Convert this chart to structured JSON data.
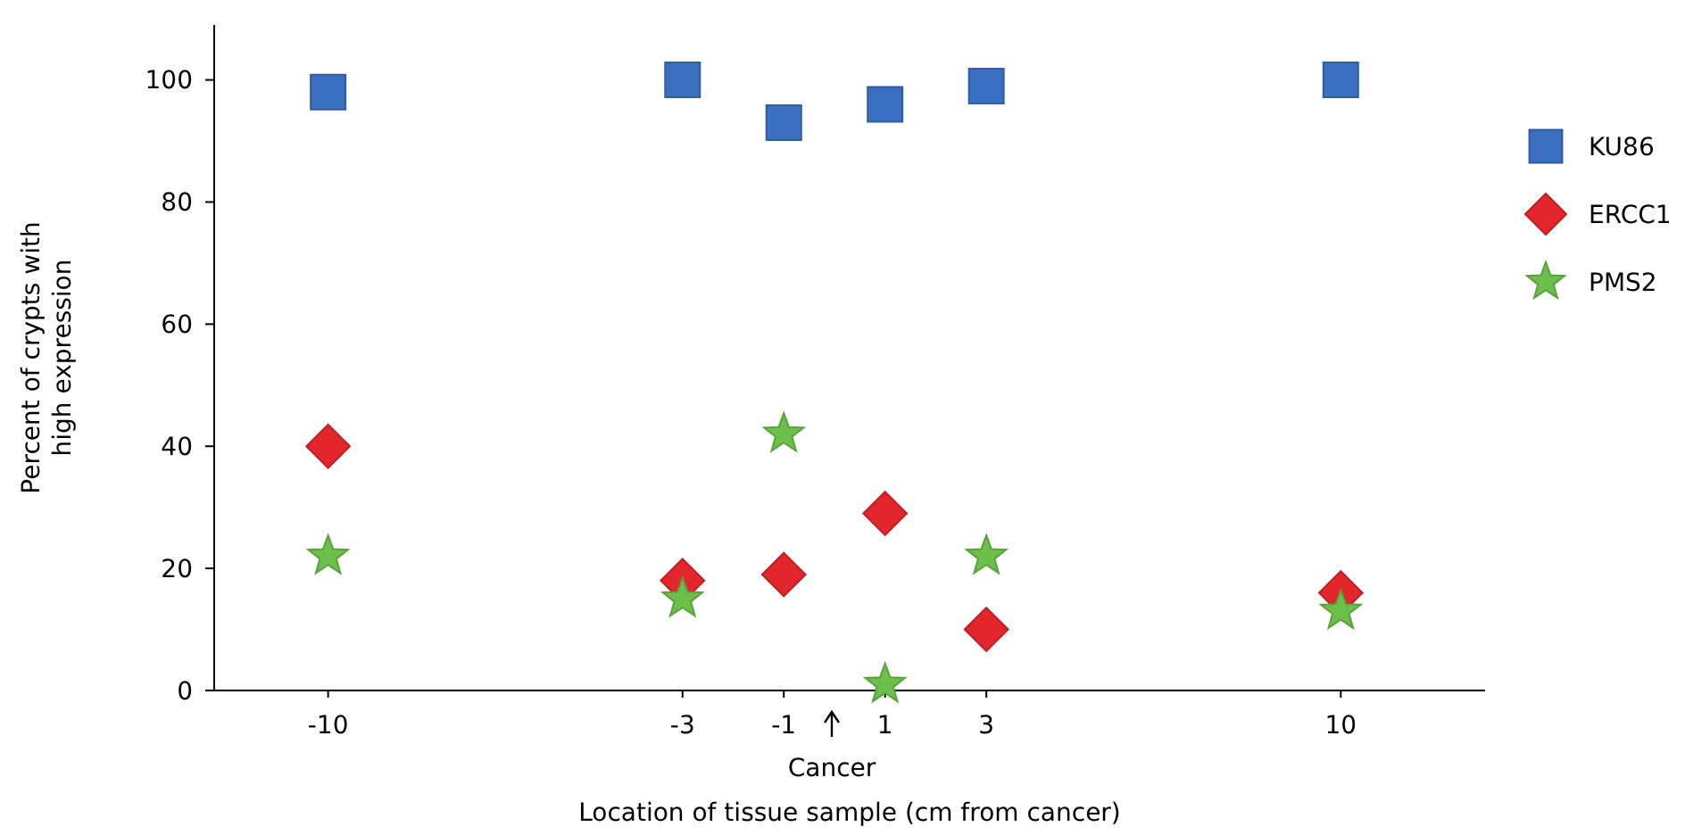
{
  "chart_data": {
    "type": "scatter",
    "xlabel": "Location of tissue sample (cm from cancer)",
    "ylabel": "Percent of crypts with\nhigh expression",
    "x": [
      -10,
      -3,
      -1,
      1,
      3,
      10
    ],
    "series": [
      {
        "name": "KU86",
        "color": "#3b6fc1",
        "marker": "square",
        "values": [
          98,
          100,
          93,
          96,
          99,
          100
        ]
      },
      {
        "name": "ERCC1",
        "color": "#e3262b",
        "marker": "diamond",
        "values": [
          40,
          18,
          19,
          29,
          10,
          16
        ]
      },
      {
        "name": "PMS2",
        "color": "#6cc04a",
        "marker": "star",
        "values": [
          22,
          15,
          42,
          1,
          22,
          13
        ]
      }
    ],
    "xlim": [
      -12.25,
      12.85
    ],
    "xticks": [
      -10,
      -3,
      -1,
      1,
      3,
      10
    ],
    "ylim": [
      0,
      109
    ],
    "yticks": [
      0,
      20,
      40,
      60,
      80,
      100
    ],
    "annotations": [
      "Cancer"
    ],
    "grid": false,
    "legend": "right"
  }
}
